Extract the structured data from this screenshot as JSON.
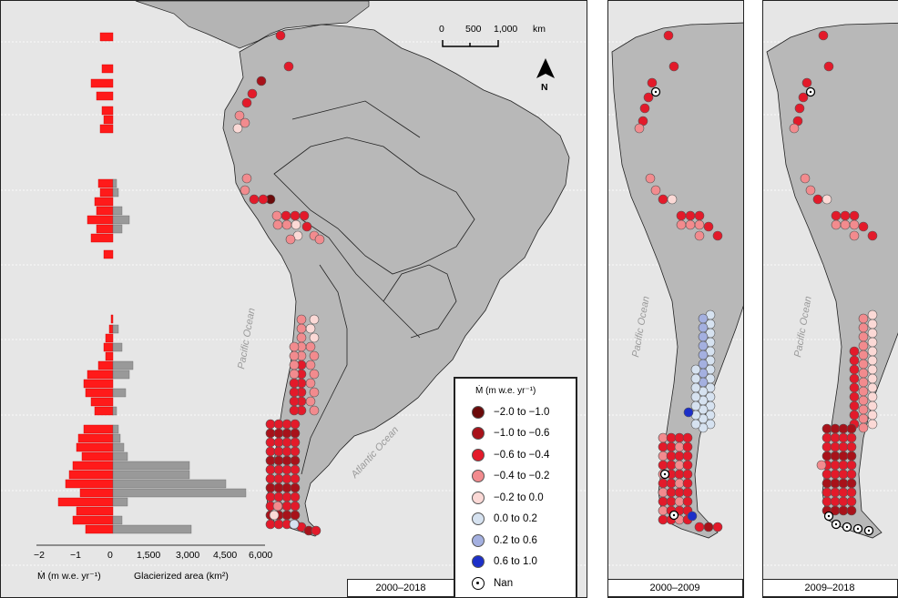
{
  "panels": {
    "main": {
      "period": "2000–2018"
    },
    "middle": {
      "period": "2000–2009"
    },
    "right": {
      "period": "2009–2018"
    }
  },
  "scale_bar": {
    "labels": [
      "0",
      "500",
      "1,000"
    ],
    "unit": "km"
  },
  "north_arrow": {
    "label": "N"
  },
  "oceans": {
    "pacific": "Pacific Ocean",
    "atlantic": "Atlantic Ocean"
  },
  "legend": {
    "title": "Ṁ (m w.e. yr⁻¹)",
    "items": [
      {
        "label": "−2.0 to −1.0",
        "color": "#6b0a0a"
      },
      {
        "label": "−1.0 to −0.6",
        "color": "#a8121a"
      },
      {
        "label": "−0.6 to −0.4",
        "color": "#e31a2a"
      },
      {
        "label": "−0.4 to −0.2",
        "color": "#f28b8e"
      },
      {
        "label": "−0.2 to 0.0",
        "color": "#fbd9d6"
      },
      {
        "label": "0.0 to 0.2",
        "color": "#d6e2f0"
      },
      {
        "label": "0.2 to 0.6",
        "color": "#a4b0e0"
      },
      {
        "label": "0.6 to 1.0",
        "color": "#1c2fc8"
      },
      {
        "label": "Nan",
        "color": "#ffffff"
      }
    ]
  },
  "histogram": {
    "mb_axis": {
      "ticks": [
        "−2",
        "−1",
        "0"
      ],
      "label": "Ṁ (m w.e. yr⁻¹)"
    },
    "area_axis": {
      "ticks": [
        "1,500",
        "3,000",
        "4,500",
        "6,000"
      ],
      "label": "Glacierized area (km²)"
    },
    "mb_color": "#ff1a1a",
    "area_color": "#999999"
  }
}
